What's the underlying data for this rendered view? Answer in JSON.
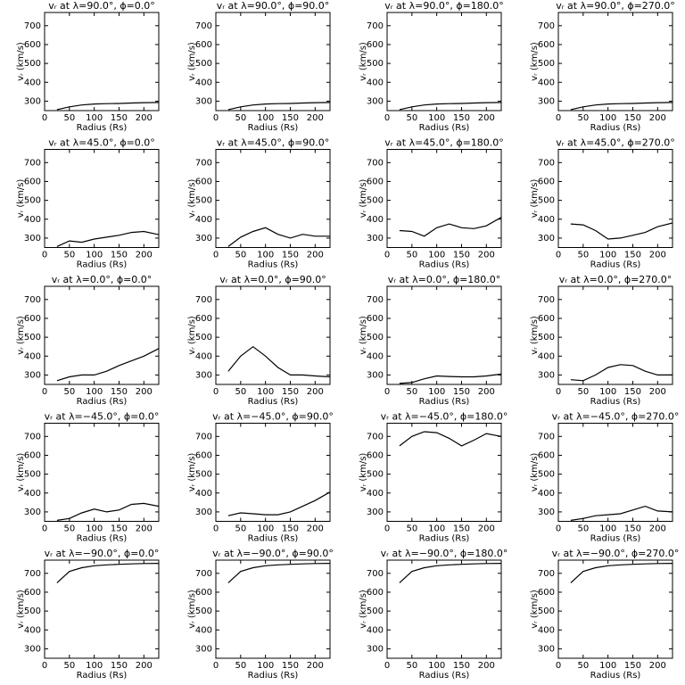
{
  "chart_data": [
    {
      "type": "line",
      "title": "vᵣ at λ=90.0°, ϕ=0.0°",
      "xlabel": "Radius (Rs)",
      "ylabel": "vᵣ (km/s)",
      "x": [
        25,
        50,
        75,
        100,
        125,
        150,
        175,
        200,
        230
      ],
      "values": [
        255,
        270,
        280,
        285,
        287,
        288,
        290,
        292,
        293
      ],
      "xlim": [
        0,
        230
      ],
      "ylim": [
        250,
        770
      ],
      "xticks": [
        0,
        50,
        100,
        150,
        200
      ],
      "yticks": [
        300,
        400,
        500,
        600,
        700
      ]
    },
    {
      "type": "line",
      "title": "vᵣ at λ=90.0°, ϕ=90.0°",
      "xlabel": "Radius (Rs)",
      "ylabel": "vᵣ (km/s)",
      "x": [
        25,
        50,
        75,
        100,
        125,
        150,
        175,
        200,
        230
      ],
      "values": [
        255,
        270,
        280,
        285,
        287,
        288,
        290,
        292,
        293
      ],
      "xlim": [
        0,
        230
      ],
      "ylim": [
        250,
        770
      ],
      "xticks": [
        0,
        50,
        100,
        150,
        200
      ],
      "yticks": [
        300,
        400,
        500,
        600,
        700
      ]
    },
    {
      "type": "line",
      "title": "vᵣ at λ=90.0°, ϕ=180.0°",
      "xlabel": "Radius (Rs)",
      "ylabel": "vᵣ (km/s)",
      "x": [
        25,
        50,
        75,
        100,
        125,
        150,
        175,
        200,
        230
      ],
      "values": [
        255,
        270,
        280,
        285,
        287,
        288,
        290,
        292,
        293
      ],
      "xlim": [
        0,
        230
      ],
      "ylim": [
        250,
        770
      ],
      "xticks": [
        0,
        50,
        100,
        150,
        200
      ],
      "yticks": [
        300,
        400,
        500,
        600,
        700
      ]
    },
    {
      "type": "line",
      "title": "vᵣ at λ=90.0°, ϕ=270.0°",
      "xlabel": "Radius (Rs)",
      "ylabel": "vᵣ (km/s)",
      "x": [
        25,
        50,
        75,
        100,
        125,
        150,
        175,
        200,
        230
      ],
      "values": [
        255,
        270,
        280,
        285,
        287,
        288,
        290,
        292,
        293
      ],
      "xlim": [
        0,
        230
      ],
      "ylim": [
        250,
        770
      ],
      "xticks": [
        0,
        50,
        100,
        150,
        200
      ],
      "yticks": [
        300,
        400,
        500,
        600,
        700
      ]
    },
    {
      "type": "line",
      "title": "vᵣ at λ=45.0°, ϕ=0.0°",
      "xlabel": "Radius (Rs)",
      "ylabel": "vᵣ (km/s)",
      "x": [
        25,
        50,
        75,
        100,
        125,
        150,
        175,
        200,
        230
      ],
      "values": [
        255,
        285,
        278,
        295,
        305,
        315,
        330,
        335,
        318
      ],
      "xlim": [
        0,
        230
      ],
      "ylim": [
        250,
        770
      ],
      "xticks": [
        0,
        50,
        100,
        150,
        200
      ],
      "yticks": [
        300,
        400,
        500,
        600,
        700
      ]
    },
    {
      "type": "line",
      "title": "vᵣ at λ=45.0°, ϕ=90.0°",
      "xlabel": "Radius (Rs)",
      "ylabel": "vᵣ (km/s)",
      "x": [
        25,
        50,
        75,
        100,
        125,
        150,
        175,
        200,
        230
      ],
      "values": [
        255,
        305,
        335,
        355,
        320,
        300,
        320,
        310,
        310
      ],
      "xlim": [
        0,
        230
      ],
      "ylim": [
        250,
        770
      ],
      "xticks": [
        0,
        50,
        100,
        150,
        200
      ],
      "yticks": [
        300,
        400,
        500,
        600,
        700
      ]
    },
    {
      "type": "line",
      "title": "vᵣ at λ=45.0°, ϕ=180.0°",
      "xlabel": "Radius (Rs)",
      "ylabel": "vᵣ (km/s)",
      "x": [
        25,
        50,
        75,
        100,
        125,
        150,
        175,
        200,
        230
      ],
      "values": [
        340,
        335,
        310,
        355,
        375,
        355,
        350,
        365,
        410
      ],
      "xlim": [
        0,
        230
      ],
      "ylim": [
        250,
        770
      ],
      "xticks": [
        0,
        50,
        100,
        150,
        200
      ],
      "yticks": [
        300,
        400,
        500,
        600,
        700
      ]
    },
    {
      "type": "line",
      "title": "vᵣ at λ=45.0°, ϕ=270.0°",
      "xlabel": "Radius (Rs)",
      "ylabel": "vᵣ (km/s)",
      "x": [
        25,
        50,
        75,
        100,
        125,
        150,
        175,
        200,
        230
      ],
      "values": [
        375,
        370,
        340,
        295,
        300,
        315,
        330,
        360,
        380
      ],
      "xlim": [
        0,
        230
      ],
      "ylim": [
        250,
        770
      ],
      "xticks": [
        0,
        50,
        100,
        150,
        200
      ],
      "yticks": [
        300,
        400,
        500,
        600,
        700
      ]
    },
    {
      "type": "line",
      "title": "vᵣ at λ=0.0°, ϕ=0.0°",
      "xlabel": "Radius (Rs)",
      "ylabel": "vᵣ (km/s)",
      "x": [
        25,
        50,
        75,
        100,
        125,
        150,
        175,
        200,
        230
      ],
      "values": [
        270,
        290,
        300,
        300,
        320,
        350,
        375,
        400,
        440
      ],
      "xlim": [
        0,
        230
      ],
      "ylim": [
        250,
        770
      ],
      "xticks": [
        0,
        50,
        100,
        150,
        200
      ],
      "yticks": [
        300,
        400,
        500,
        600,
        700
      ]
    },
    {
      "type": "line",
      "title": "vᵣ at λ=0.0°, ϕ=90.0°",
      "xlabel": "Radius (Rs)",
      "ylabel": "vᵣ (km/s)",
      "x": [
        25,
        50,
        75,
        100,
        125,
        150,
        175,
        200,
        230
      ],
      "values": [
        320,
        400,
        450,
        400,
        340,
        300,
        300,
        295,
        290
      ],
      "xlim": [
        0,
        230
      ],
      "ylim": [
        250,
        770
      ],
      "xticks": [
        0,
        50,
        100,
        150,
        200
      ],
      "yticks": [
        300,
        400,
        500,
        600,
        700
      ]
    },
    {
      "type": "line",
      "title": "vᵣ at λ=0.0°, ϕ=180.0°",
      "xlabel": "Radius (Rs)",
      "ylabel": "vᵣ (km/s)",
      "x": [
        25,
        50,
        75,
        100,
        125,
        150,
        175,
        200,
        230
      ],
      "values": [
        255,
        260,
        280,
        295,
        292,
        290,
        290,
        295,
        305
      ],
      "xlim": [
        0,
        230
      ],
      "ylim": [
        250,
        770
      ],
      "xticks": [
        0,
        50,
        100,
        150,
        200
      ],
      "yticks": [
        300,
        400,
        500,
        600,
        700
      ]
    },
    {
      "type": "line",
      "title": "vᵣ at λ=0.0°, ϕ=270.0°",
      "xlabel": "Radius (Rs)",
      "ylabel": "vᵣ (km/s)",
      "x": [
        25,
        50,
        75,
        100,
        125,
        150,
        175,
        200,
        230
      ],
      "values": [
        275,
        270,
        300,
        340,
        355,
        350,
        320,
        300,
        300
      ],
      "xlim": [
        0,
        230
      ],
      "ylim": [
        250,
        770
      ],
      "xticks": [
        0,
        50,
        100,
        150,
        200
      ],
      "yticks": [
        300,
        400,
        500,
        600,
        700
      ]
    },
    {
      "type": "line",
      "title": "vᵣ at λ=−45.0°, ϕ=0.0°",
      "xlabel": "Radius (Rs)",
      "ylabel": "vᵣ (km/s)",
      "x": [
        25,
        50,
        75,
        100,
        125,
        150,
        175,
        200,
        230
      ],
      "values": [
        255,
        265,
        295,
        315,
        300,
        310,
        340,
        345,
        330
      ],
      "xlim": [
        0,
        230
      ],
      "ylim": [
        250,
        770
      ],
      "xticks": [
        0,
        50,
        100,
        150,
        200
      ],
      "yticks": [
        300,
        400,
        500,
        600,
        700
      ]
    },
    {
      "type": "line",
      "title": "vᵣ at λ=−45.0°, ϕ=90.0°",
      "xlabel": "Radius (Rs)",
      "ylabel": "vᵣ (km/s)",
      "x": [
        25,
        50,
        75,
        100,
        125,
        150,
        175,
        200,
        230
      ],
      "values": [
        280,
        295,
        290,
        285,
        285,
        300,
        330,
        360,
        405
      ],
      "xlim": [
        0,
        230
      ],
      "ylim": [
        250,
        770
      ],
      "xticks": [
        0,
        50,
        100,
        150,
        200
      ],
      "yticks": [
        300,
        400,
        500,
        600,
        700
      ]
    },
    {
      "type": "line",
      "title": "vᵣ at λ=−45.0°, ϕ=180.0°",
      "xlabel": "Radius (Rs)",
      "ylabel": "vᵣ (km/s)",
      "x": [
        25,
        50,
        75,
        100,
        125,
        150,
        175,
        200,
        230
      ],
      "values": [
        650,
        700,
        725,
        720,
        690,
        650,
        680,
        715,
        700
      ],
      "xlim": [
        0,
        230
      ],
      "ylim": [
        250,
        770
      ],
      "xticks": [
        0,
        50,
        100,
        150,
        200
      ],
      "yticks": [
        300,
        400,
        500,
        600,
        700
      ]
    },
    {
      "type": "line",
      "title": "vᵣ at λ=−45.0°, ϕ=270.0°",
      "xlabel": "Radius (Rs)",
      "ylabel": "vᵣ (km/s)",
      "x": [
        25,
        50,
        75,
        100,
        125,
        150,
        175,
        200,
        230
      ],
      "values": [
        255,
        265,
        280,
        285,
        290,
        310,
        330,
        305,
        300
      ],
      "xlim": [
        0,
        230
      ],
      "ylim": [
        250,
        770
      ],
      "xticks": [
        0,
        50,
        100,
        150,
        200
      ],
      "yticks": [
        300,
        400,
        500,
        600,
        700
      ]
    },
    {
      "type": "line",
      "title": "vᵣ at λ=−90.0°, ϕ=0.0°",
      "xlabel": "Radius (Rs)",
      "ylabel": "vᵣ (km/s)",
      "x": [
        25,
        50,
        75,
        100,
        125,
        150,
        175,
        200,
        230
      ],
      "values": [
        650,
        710,
        730,
        740,
        745,
        748,
        750,
        752,
        753
      ],
      "xlim": [
        0,
        230
      ],
      "ylim": [
        250,
        770
      ],
      "xticks": [
        0,
        50,
        100,
        150,
        200
      ],
      "yticks": [
        300,
        400,
        500,
        600,
        700
      ]
    },
    {
      "type": "line",
      "title": "vᵣ at λ=−90.0°, ϕ=90.0°",
      "xlabel": "Radius (Rs)",
      "ylabel": "vᵣ (km/s)",
      "x": [
        25,
        50,
        75,
        100,
        125,
        150,
        175,
        200,
        230
      ],
      "values": [
        650,
        710,
        730,
        740,
        745,
        748,
        750,
        752,
        753
      ],
      "xlim": [
        0,
        230
      ],
      "ylim": [
        250,
        770
      ],
      "xticks": [
        0,
        50,
        100,
        150,
        200
      ],
      "yticks": [
        300,
        400,
        500,
        600,
        700
      ]
    },
    {
      "type": "line",
      "title": "vᵣ at λ=−90.0°, ϕ=180.0°",
      "xlabel": "Radius (Rs)",
      "ylabel": "vᵣ (km/s)",
      "x": [
        25,
        50,
        75,
        100,
        125,
        150,
        175,
        200,
        230
      ],
      "values": [
        650,
        710,
        730,
        740,
        745,
        748,
        750,
        752,
        753
      ],
      "xlim": [
        0,
        230
      ],
      "ylim": [
        250,
        770
      ],
      "xticks": [
        0,
        50,
        100,
        150,
        200
      ],
      "yticks": [
        300,
        400,
        500,
        600,
        700
      ]
    },
    {
      "type": "line",
      "title": "vᵣ at λ=−90.0°, ϕ=270.0°",
      "xlabel": "Radius (Rs)",
      "ylabel": "vᵣ (km/s)",
      "x": [
        25,
        50,
        75,
        100,
        125,
        150,
        175,
        200,
        230
      ],
      "values": [
        650,
        710,
        730,
        740,
        745,
        748,
        750,
        752,
        753
      ],
      "xlim": [
        0,
        230
      ],
      "ylim": [
        250,
        770
      ],
      "xticks": [
        0,
        50,
        100,
        150,
        200
      ],
      "yticks": [
        300,
        400,
        500,
        600,
        700
      ]
    }
  ]
}
